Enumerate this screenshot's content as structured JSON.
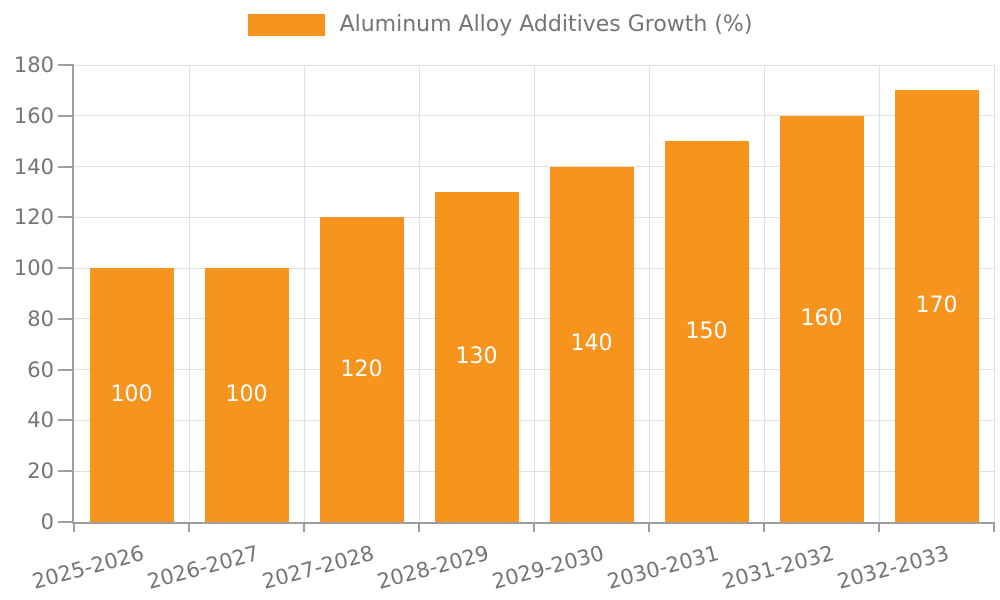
{
  "chart_data": {
    "type": "bar",
    "title": "Aluminum Alloy Additives Growth (%)",
    "legend": {
      "label": "Aluminum Alloy Additives Growth (%)",
      "position": "top"
    },
    "categories": [
      "2025-2026",
      "2026-2027",
      "2027-2028",
      "2028-2029",
      "2029-2030",
      "2030-2031",
      "2031-2032",
      "2032-2033"
    ],
    "values": [
      100,
      100,
      120,
      130,
      140,
      150,
      160,
      170
    ],
    "bar_value_labels": [
      "100",
      "100",
      "120",
      "130",
      "140",
      "150",
      "160",
      "170"
    ],
    "xlabel": "",
    "ylabel": "",
    "ylim": [
      0,
      180
    ],
    "ytick_step": 20,
    "yticks": [
      0,
      20,
      40,
      60,
      80,
      100,
      120,
      140,
      160,
      180
    ],
    "grid": true,
    "x_label_rotation_deg": -15,
    "colors": {
      "bar": "#F7941E",
      "bar_label_text": "#FFFFFF",
      "axis": "#9E9E9E",
      "gridline": "#E0E0E0",
      "tick_label_text": "#757575",
      "legend_text": "#757575",
      "background": "#FFFFFF"
    }
  }
}
